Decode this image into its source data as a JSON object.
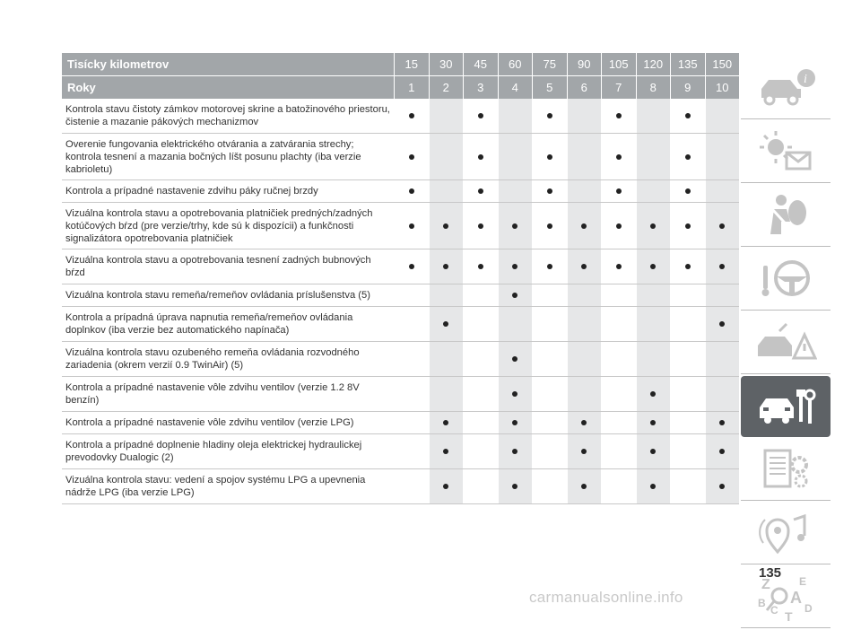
{
  "table": {
    "header_km_label": "Tisícky kilometrov",
    "header_years_label": "Roky",
    "km": [
      "15",
      "30",
      "45",
      "60",
      "75",
      "90",
      "105",
      "120",
      "135",
      "150"
    ],
    "years": [
      "1",
      "2",
      "3",
      "4",
      "5",
      "6",
      "7",
      "8",
      "9",
      "10"
    ],
    "rows": [
      {
        "text": "Kontrola stavu čistoty zámkov motorovej skrine a batožinového priestoru, čistenie a mazanie pákových mechanizmov",
        "marks": [
          1,
          0,
          1,
          0,
          1,
          0,
          1,
          0,
          1,
          0
        ]
      },
      {
        "text": "Overenie fungovania elektrického otvárania a zatvárania strechy; kontrola tesnení a mazania bočných líšt posunu plachty (iba verzie kabrioletu)",
        "marks": [
          1,
          0,
          1,
          0,
          1,
          0,
          1,
          0,
          1,
          0
        ]
      },
      {
        "text": "Kontrola a prípadné nastavenie zdvihu páky ručnej brzdy",
        "marks": [
          1,
          0,
          1,
          0,
          1,
          0,
          1,
          0,
          1,
          0
        ]
      },
      {
        "text": "Vizuálna kontrola stavu a opotrebovania platničiek predných/zadných kotúčových bŕzd (pre verzie/trhy, kde sú k dispozícii) a funkčnosti signalizátora opotrebovania platničiek",
        "marks": [
          1,
          1,
          1,
          1,
          1,
          1,
          1,
          1,
          1,
          1
        ]
      },
      {
        "text": "Vizuálna kontrola stavu a opotrebovania tesnení zadných bubnových bŕzd",
        "marks": [
          1,
          1,
          1,
          1,
          1,
          1,
          1,
          1,
          1,
          1
        ]
      },
      {
        "text": "Vizuálna kontrola stavu remeňa/remeňov ovládania príslušenstva (5)",
        "marks": [
          0,
          0,
          0,
          1,
          0,
          0,
          0,
          0,
          0,
          0
        ]
      },
      {
        "text": "Kontrola a prípadná úprava napnutia remeňa/remeňov ovládania doplnkov (iba verzie bez automatického napínača)",
        "marks": [
          0,
          1,
          0,
          0,
          0,
          0,
          0,
          0,
          0,
          1
        ]
      },
      {
        "text": "Vizuálna kontrola stavu ozubeného remeňa ovládania rozvodného zariadenia (okrem verzií 0.9 TwinAir) (5)",
        "marks": [
          0,
          0,
          0,
          1,
          0,
          0,
          0,
          0,
          0,
          0
        ]
      },
      {
        "text": "Kontrola a prípadné nastavenie vôle zdvihu ventilov (verzie 1.2 8V benzín)",
        "marks": [
          0,
          0,
          0,
          1,
          0,
          0,
          0,
          1,
          0,
          0
        ]
      },
      {
        "text": "Kontrola a prípadné nastavenie vôle zdvihu ventilov (verzie LPG)",
        "marks": [
          0,
          1,
          0,
          1,
          0,
          1,
          0,
          1,
          0,
          1
        ]
      },
      {
        "text": "Kontrola a prípadné doplnenie hladiny oleja elektrickej hydraulickej prevodovky Dualogic (2)",
        "marks": [
          0,
          1,
          0,
          1,
          0,
          1,
          0,
          1,
          0,
          1
        ]
      },
      {
        "text": "Vizuálna kontrola stavu: vedení a spojov systému LPG a upevnenia nádrže LPG (iba verzie LPG)",
        "marks": [
          0,
          1,
          0,
          1,
          0,
          1,
          0,
          1,
          0,
          1
        ]
      }
    ]
  },
  "sidebar": {
    "icons": [
      "car-info-icon",
      "warning-lights-icon",
      "airbag-safety-icon",
      "steering-starting-icon",
      "emergency-icon",
      "maintenance-icon",
      "technical-data-icon",
      "multimedia-icon",
      "index-icon"
    ],
    "active_index": 5,
    "colors": {
      "active_bg": "#5e6266",
      "icon": "#c4c4c4"
    }
  },
  "page_number": "135",
  "watermark": "carmanualsonline.info",
  "colors": {
    "header_bg": "#a2a6a9",
    "alt_col_bg": "#e6e7e8"
  }
}
